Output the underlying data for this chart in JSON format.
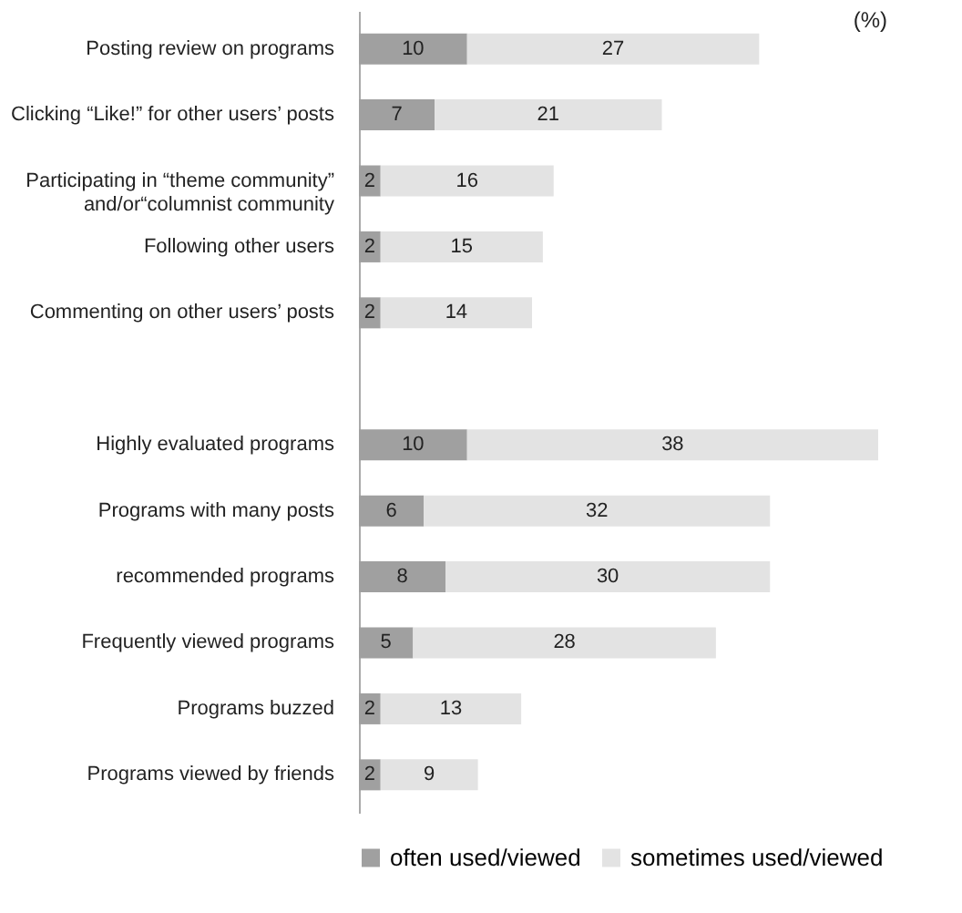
{
  "chart_data": {
    "type": "bar",
    "orientation": "horizontal",
    "stacked": true,
    "data_labels": true,
    "legend": "bottom left",
    "grid": false,
    "categories": [
      "Posting review on programs",
      "Clicking “Like!” for other users’ posts",
      "Participating in “theme community”\nand/or“columnist community",
      "Following other users",
      "Commenting on other users’ posts",
      null,
      "Highly evaluated programs",
      "Programs with many posts",
      "recommended programs",
      "Frequently viewed programs",
      "Programs buzzed",
      "Programs viewed by friends"
    ],
    "series": [
      {
        "name": "often used/viewed",
        "color": "#a0a0a0",
        "values": [
          10,
          7,
          2,
          2,
          2,
          null,
          10,
          6,
          8,
          5,
          2,
          2
        ]
      },
      {
        "name": "sometimes used/viewed",
        "color": "#e3e3e3",
        "values": [
          27,
          21,
          16,
          15,
          14,
          null,
          38,
          32,
          30,
          28,
          13,
          9
        ]
      }
    ],
    "annotations": [
      "(%)"
    ]
  }
}
